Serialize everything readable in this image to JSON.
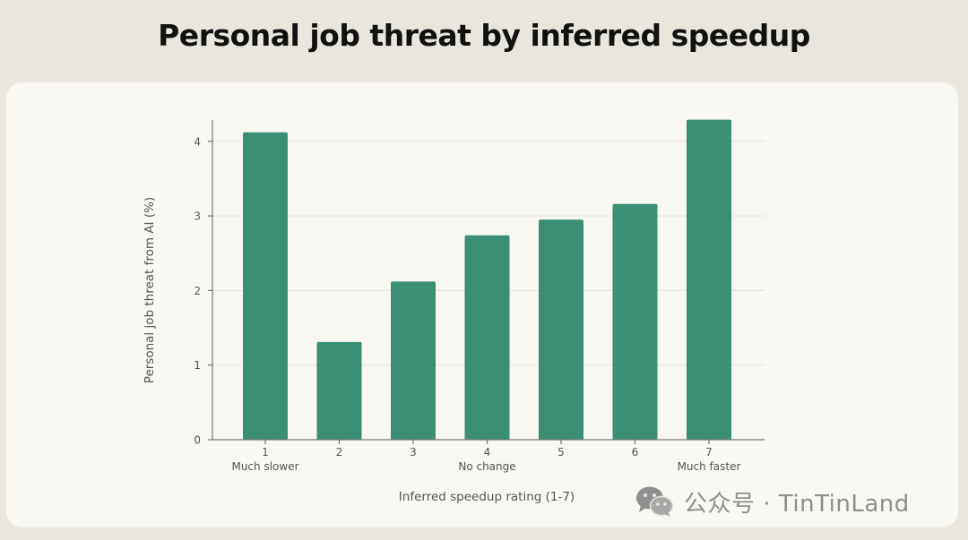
{
  "page": {
    "title": "Personal job threat by inferred speedup"
  },
  "chart_data": {
    "type": "bar",
    "title": "Personal job threat by inferred speedup",
    "xlabel": "Inferred speedup rating (1-7)",
    "ylabel": "Personal job threat from AI (%)",
    "categories": [
      "1",
      "2",
      "3",
      "4",
      "5",
      "6",
      "7"
    ],
    "category_sublabels": [
      "Much slower",
      "",
      "",
      "No change",
      "",
      "",
      "Much faster"
    ],
    "values": [
      4.12,
      1.31,
      2.12,
      2.74,
      2.95,
      3.16,
      4.29
    ],
    "yticks": [
      0,
      1,
      2,
      3,
      4
    ],
    "ylim": [
      0,
      4.3
    ],
    "grid": true,
    "bar_color": "#3a8f74"
  },
  "watermark": {
    "text": "公众号 · TinTinLand"
  },
  "colors": {
    "background": "#e9e7dd",
    "card": "#f8f7f2",
    "bar": "#3a8f74",
    "axis": "#777777",
    "grid": "#e2e1dc",
    "label": "#555555"
  }
}
